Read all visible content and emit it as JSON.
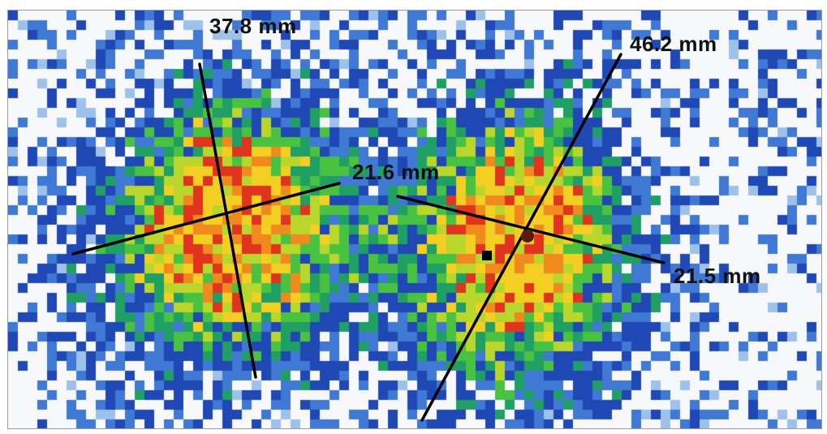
{
  "measurements": [
    {
      "id": "left-long-axis",
      "text": "37.8 mm"
    },
    {
      "id": "left-short-axis",
      "text": "21.6 mm"
    },
    {
      "id": "right-long-axis",
      "text": "46.2 mm"
    },
    {
      "id": "right-short-axis",
      "text": "21.5 mm"
    }
  ],
  "colors": {
    "background": "#f7f8fb",
    "line": "#000000",
    "scale": [
      "#dbe6f7",
      "#9ec1ea",
      "#3f79d4",
      "#1f48b4",
      "#1f9f63",
      "#49c141",
      "#b9d62c",
      "#f3cf23",
      "#f08a1f",
      "#e0341e"
    ]
  }
}
